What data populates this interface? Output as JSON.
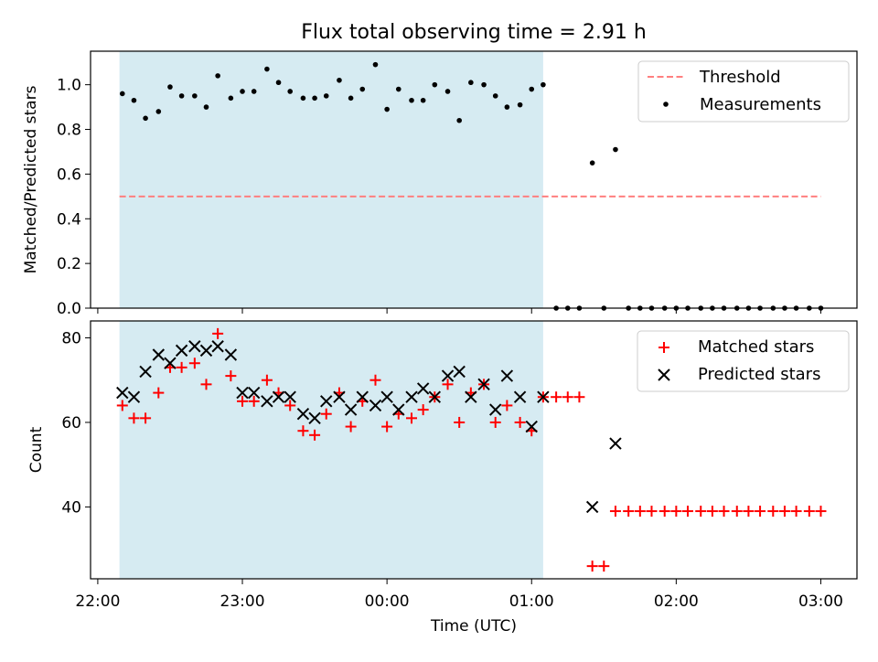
{
  "chart_data": {
    "title": "Flux total observing time = 2.91 h",
    "xlabel": "Time (UTC)",
    "x_ticks": [
      "22:00",
      "23:00",
      "00:00",
      "01:00",
      "02:00",
      "03:00"
    ],
    "x_range_hours": [
      21.95,
      27.25
    ],
    "shaded_interval_hours": [
      22.15,
      25.08
    ],
    "shade_color": "#add8e6",
    "panels": [
      {
        "id": "top",
        "type": "scatter",
        "ylabel": "Matched/Predicted stars",
        "ylim": [
          0,
          1.15
        ],
        "y_ticks": [
          0.0,
          0.2,
          0.4,
          0.6,
          0.8,
          1.0
        ],
        "legend_position": "top-right",
        "threshold": {
          "name": "Threshold",
          "value": 0.5,
          "x_range_hours": [
            22.15,
            27.0
          ],
          "color": "#ff7f7f"
        },
        "series": [
          {
            "name": "Measurements",
            "color": "#000000",
            "marker": "dot",
            "points": [
              [
                22.17,
                0.96
              ],
              [
                22.25,
                0.93
              ],
              [
                22.33,
                0.85
              ],
              [
                22.42,
                0.88
              ],
              [
                22.5,
                0.99
              ],
              [
                22.58,
                0.95
              ],
              [
                22.67,
                0.95
              ],
              [
                22.75,
                0.9
              ],
              [
                22.83,
                1.04
              ],
              [
                22.92,
                0.94
              ],
              [
                23.0,
                0.97
              ],
              [
                23.08,
                0.97
              ],
              [
                23.17,
                1.07
              ],
              [
                23.25,
                1.01
              ],
              [
                23.33,
                0.97
              ],
              [
                23.42,
                0.94
              ],
              [
                23.5,
                0.94
              ],
              [
                23.58,
                0.95
              ],
              [
                23.67,
                1.02
              ],
              [
                23.75,
                0.94
              ],
              [
                23.83,
                0.98
              ],
              [
                23.92,
                1.09
              ],
              [
                24.0,
                0.89
              ],
              [
                24.08,
                0.98
              ],
              [
                24.17,
                0.93
              ],
              [
                24.25,
                0.93
              ],
              [
                24.33,
                1.0
              ],
              [
                24.42,
                0.97
              ],
              [
                24.5,
                0.84
              ],
              [
                24.58,
                1.01
              ],
              [
                24.67,
                1.0
              ],
              [
                24.75,
                0.95
              ],
              [
                24.83,
                0.9
              ],
              [
                24.92,
                0.91
              ],
              [
                25.0,
                0.98
              ],
              [
                25.08,
                1.0
              ],
              [
                25.17,
                0.0
              ],
              [
                25.25,
                0.0
              ],
              [
                25.33,
                0.0
              ],
              [
                25.42,
                0.65
              ],
              [
                25.5,
                0.0
              ],
              [
                25.58,
                0.71
              ],
              [
                25.67,
                0.0
              ],
              [
                25.75,
                0.0
              ],
              [
                25.83,
                0.0
              ],
              [
                25.92,
                0.0
              ],
              [
                26.0,
                0.0
              ],
              [
                26.08,
                0.0
              ],
              [
                26.17,
                0.0
              ],
              [
                26.25,
                0.0
              ],
              [
                26.33,
                0.0
              ],
              [
                26.42,
                0.0
              ],
              [
                26.5,
                0.0
              ],
              [
                26.58,
                0.0
              ],
              [
                26.67,
                0.0
              ],
              [
                26.75,
                0.0
              ],
              [
                26.83,
                0.0
              ],
              [
                26.92,
                0.0
              ],
              [
                27.0,
                0.0
              ]
            ]
          }
        ]
      },
      {
        "id": "bottom",
        "type": "scatter",
        "ylabel": "Count",
        "ylim": [
          23,
          84
        ],
        "y_ticks": [
          40,
          60,
          80
        ],
        "legend_position": "top-right",
        "series": [
          {
            "name": "Matched stars",
            "color": "#ff0000",
            "marker": "plus",
            "points": [
              [
                22.17,
                64
              ],
              [
                22.25,
                61
              ],
              [
                22.33,
                61
              ],
              [
                22.42,
                67
              ],
              [
                22.5,
                73
              ],
              [
                22.58,
                73
              ],
              [
                22.67,
                74
              ],
              [
                22.75,
                69
              ],
              [
                22.83,
                81
              ],
              [
                22.92,
                71
              ],
              [
                23.0,
                65
              ],
              [
                23.08,
                65
              ],
              [
                23.17,
                70
              ],
              [
                23.25,
                67
              ],
              [
                23.33,
                64
              ],
              [
                23.42,
                58
              ],
              [
                23.5,
                57
              ],
              [
                23.58,
                62
              ],
              [
                23.67,
                67
              ],
              [
                23.75,
                59
              ],
              [
                23.83,
                65
              ],
              [
                23.92,
                70
              ],
              [
                24.0,
                59
              ],
              [
                24.08,
                62
              ],
              [
                24.17,
                61
              ],
              [
                24.25,
                63
              ],
              [
                24.33,
                66
              ],
              [
                24.42,
                69
              ],
              [
                24.5,
                60
              ],
              [
                24.58,
                67
              ],
              [
                24.67,
                69
              ],
              [
                24.75,
                60
              ],
              [
                24.83,
                64
              ],
              [
                24.92,
                60
              ],
              [
                25.0,
                58
              ],
              [
                25.08,
                66
              ],
              [
                25.17,
                66
              ],
              [
                25.25,
                66
              ],
              [
                25.33,
                66
              ],
              [
                25.42,
                26
              ],
              [
                25.5,
                26
              ],
              [
                25.58,
                39
              ],
              [
                25.67,
                39
              ],
              [
                25.75,
                39
              ],
              [
                25.83,
                39
              ],
              [
                25.92,
                39
              ],
              [
                26.0,
                39
              ],
              [
                26.08,
                39
              ],
              [
                26.17,
                39
              ],
              [
                26.25,
                39
              ],
              [
                26.33,
                39
              ],
              [
                26.42,
                39
              ],
              [
                26.5,
                39
              ],
              [
                26.58,
                39
              ],
              [
                26.67,
                39
              ],
              [
                26.75,
                39
              ],
              [
                26.83,
                39
              ],
              [
                26.92,
                39
              ],
              [
                27.0,
                39
              ]
            ]
          },
          {
            "name": "Predicted stars",
            "color": "#000000",
            "marker": "x",
            "points": [
              [
                22.17,
                67
              ],
              [
                22.25,
                66
              ],
              [
                22.33,
                72
              ],
              [
                22.42,
                76
              ],
              [
                22.5,
                74
              ],
              [
                22.58,
                77
              ],
              [
                22.67,
                78
              ],
              [
                22.75,
                77
              ],
              [
                22.83,
                78
              ],
              [
                22.92,
                76
              ],
              [
                23.0,
                67
              ],
              [
                23.08,
                67
              ],
              [
                23.17,
                65
              ],
              [
                23.25,
                66
              ],
              [
                23.33,
                66
              ],
              [
                23.42,
                62
              ],
              [
                23.5,
                61
              ],
              [
                23.58,
                65
              ],
              [
                23.67,
                66
              ],
              [
                23.75,
                63
              ],
              [
                23.83,
                66
              ],
              [
                23.92,
                64
              ],
              [
                24.0,
                66
              ],
              [
                24.08,
                63
              ],
              [
                24.17,
                66
              ],
              [
                24.25,
                68
              ],
              [
                24.33,
                66
              ],
              [
                24.42,
                71
              ],
              [
                24.5,
                72
              ],
              [
                24.58,
                66
              ],
              [
                24.67,
                69
              ],
              [
                24.75,
                63
              ],
              [
                24.83,
                71
              ],
              [
                24.92,
                66
              ],
              [
                25.0,
                59
              ],
              [
                25.08,
                66
              ],
              [
                25.42,
                40
              ],
              [
                25.58,
                55
              ]
            ]
          }
        ]
      }
    ]
  }
}
